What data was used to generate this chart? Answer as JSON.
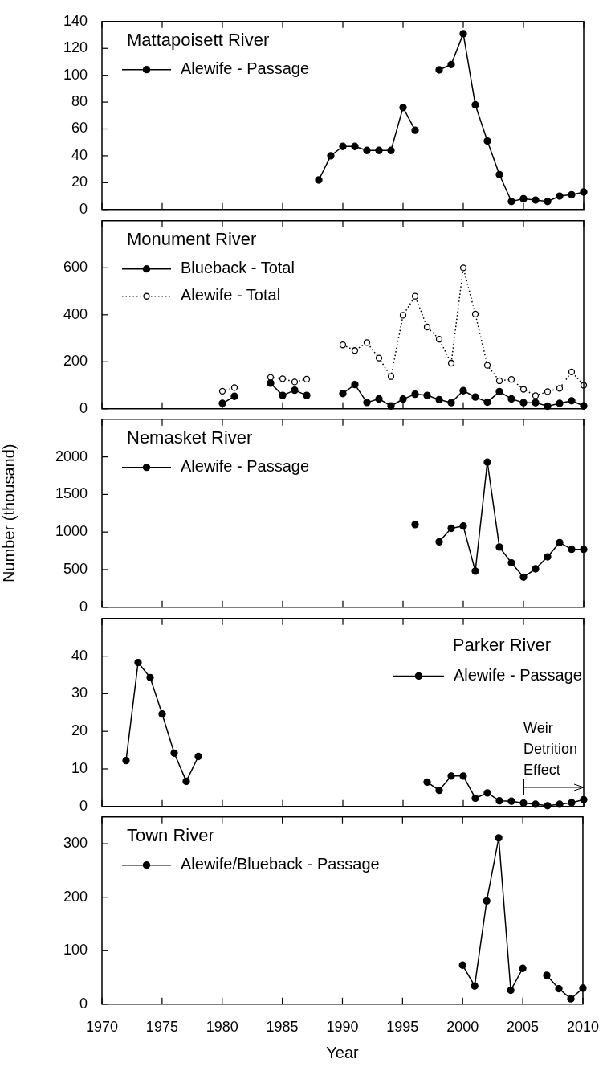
{
  "chart_data": [
    {
      "type": "line",
      "title": "Mattapoisett River",
      "xlim": [
        1970,
        2010
      ],
      "xticks": [
        1970,
        1975,
        1980,
        1985,
        1990,
        1995,
        2000,
        2005,
        2010
      ],
      "ylim": [
        0,
        140
      ],
      "yticks": [
        0,
        20,
        40,
        60,
        80,
        100,
        120,
        140
      ],
      "tick_labels": "y",
      "legend": "top left",
      "grid": false,
      "series": [
        {
          "name": "Alewife - Passage",
          "color": "#000000",
          "marker": "circle",
          "line_style": "solid",
          "x": [
            1988,
            1989,
            1990,
            1991,
            1992,
            1993,
            1994,
            1995,
            1996,
            1997,
            1998,
            1999,
            2000,
            2001,
            2002,
            2003,
            2004,
            2005,
            2006,
            2007,
            2008,
            2009,
            2010
          ],
          "values": [
            22,
            40,
            47,
            47,
            44,
            44,
            44,
            76,
            59,
            null,
            104,
            108,
            131,
            78,
            51,
            26,
            6,
            8,
            7,
            6,
            10,
            11,
            13
          ]
        }
      ]
    },
    {
      "type": "line",
      "title": "Monument River",
      "xlim": [
        1970,
        2010
      ],
      "xticks": [
        1970,
        1975,
        1980,
        1985,
        1990,
        1995,
        2000,
        2005,
        2010
      ],
      "ylim": [
        0,
        800
      ],
      "yticks": [
        0,
        200,
        400,
        600
      ],
      "tick_labels": "y",
      "legend": "top left",
      "grid": false,
      "series": [
        {
          "name": "Blueback - Total",
          "color": "#000000",
          "marker": "circle",
          "line_style": "solid",
          "x": [
            1980,
            1981,
            1982,
            1983,
            1984,
            1985,
            1986,
            1987,
            1988,
            1989,
            1990,
            1991,
            1992,
            1993,
            1994,
            1995,
            1996,
            1997,
            1998,
            1999,
            2000,
            2001,
            2002,
            2003,
            2004,
            2005,
            2006,
            2007,
            2008,
            2009,
            2010
          ],
          "values": [
            23,
            53,
            null,
            null,
            109,
            57,
            79,
            57,
            null,
            null,
            65,
            103,
            27,
            42,
            12,
            41,
            62,
            57,
            39,
            26,
            77,
            50,
            28,
            73,
            42,
            26,
            26,
            11,
            23,
            34,
            12
          ]
        },
        {
          "name": "Alewife - Total",
          "color": "#000000",
          "marker": "circle",
          "line_style": "dotted",
          "x": [
            1980,
            1981,
            1982,
            1983,
            1984,
            1985,
            1986,
            1987,
            1988,
            1989,
            1990,
            1991,
            1992,
            1993,
            1994,
            1995,
            1996,
            1997,
            1998,
            1999,
            2000,
            2001,
            2002,
            2003,
            2004,
            2005,
            2006,
            2007,
            2008,
            2009,
            2010
          ],
          "values": [
            75,
            90,
            null,
            null,
            134,
            128,
            114,
            126,
            null,
            null,
            272,
            248,
            282,
            216,
            137,
            398,
            479,
            348,
            296,
            194,
            600,
            403,
            185,
            119,
            125,
            83,
            56,
            73,
            87,
            157,
            100
          ]
        }
      ]
    },
    {
      "type": "line",
      "title": "Nemasket River",
      "ylabel": "Number (thousand)",
      "xlim": [
        1970,
        2010
      ],
      "xticks": [
        1970,
        1975,
        1980,
        1985,
        1990,
        1995,
        2000,
        2005,
        2010
      ],
      "ylim": [
        0,
        2500
      ],
      "yticks": [
        0,
        500,
        1000,
        1500,
        2000
      ],
      "tick_labels": "y",
      "legend": "top left",
      "grid": false,
      "series": [
        {
          "name": "Alewife - Passage",
          "color": "#000000",
          "marker": "circle",
          "line_style": "solid",
          "x": [
            1996,
            1997,
            1998,
            1999,
            2000,
            2001,
            2002,
            2003,
            2004,
            2005,
            2006,
            2007,
            2008,
            2009,
            2010
          ],
          "values": [
            1100,
            null,
            870,
            1050,
            1080,
            480,
            1930,
            800,
            590,
            400,
            510,
            670,
            860,
            770,
            770
          ]
        }
      ]
    },
    {
      "type": "line",
      "title": "Parker River",
      "xlim": [
        1970,
        2010
      ],
      "xticks": [
        1970,
        1975,
        1980,
        1985,
        1990,
        1995,
        2000,
        2005,
        2010
      ],
      "ylim": [
        0,
        50
      ],
      "yticks": [
        0,
        10,
        20,
        30,
        40
      ],
      "tick_labels": "y",
      "legend": "top right",
      "grid": false,
      "annotations": [
        "Weir Detrition Effect"
      ],
      "series": [
        {
          "name": "Alewife - Passage",
          "color": "#000000",
          "marker": "circle",
          "line_style": "solid",
          "x": [
            1972,
            1973,
            1974,
            1975,
            1976,
            1977,
            1978,
            1979,
            1980,
            1981,
            1982,
            1983,
            1984,
            1985,
            1986,
            1987,
            1988,
            1989,
            1990,
            1991,
            1992,
            1993,
            1994,
            1995,
            1996,
            1997,
            1998,
            1999,
            2000,
            2001,
            2002,
            2003,
            2004,
            2005,
            2006,
            2007,
            2008,
            2009,
            2010
          ],
          "values": [
            12.2,
            38.3,
            34.3,
            24.6,
            14.2,
            6.7,
            13.3,
            null,
            null,
            null,
            null,
            null,
            null,
            null,
            null,
            null,
            null,
            null,
            null,
            null,
            null,
            null,
            null,
            null,
            null,
            6.5,
            4.3,
            8.1,
            8.1,
            2.2,
            3.6,
            1.5,
            1.4,
            0.9,
            0.6,
            0.2,
            0.6,
            1.0,
            1.8
          ]
        }
      ]
    },
    {
      "type": "line",
      "title": "Town River",
      "xlabel": "Year",
      "xlim": [
        1970,
        2010
      ],
      "xticks": [
        1970,
        1975,
        1980,
        1985,
        1990,
        1995,
        2000,
        2005,
        2010
      ],
      "ylim": [
        0,
        350
      ],
      "yticks": [
        0,
        100,
        200,
        300
      ],
      "legend": "top left",
      "grid": false,
      "series": [
        {
          "name": "Alewife/Blueback - Passage",
          "color": "#000000",
          "marker": "circle",
          "line_style": "solid",
          "x": [
            2000,
            2001,
            2002,
            2003,
            2004,
            2005,
            2006,
            2007,
            2008,
            2009,
            2010
          ],
          "values": [
            73,
            34,
            193,
            311,
            26,
            67,
            null,
            54,
            29,
            10,
            30
          ]
        }
      ]
    }
  ]
}
